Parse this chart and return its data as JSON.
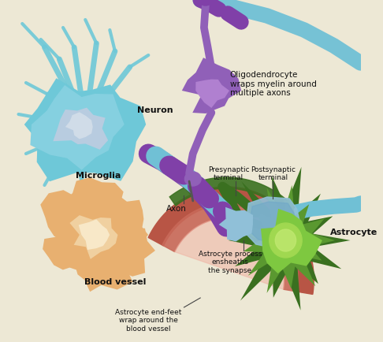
{
  "background_color": "#ede8d5",
  "labels": {
    "neuron": "Neuron",
    "oligodendrocyte": "Oligodendrocyte\nwraps myelin around\nmultiple axons",
    "microglia": "Microglia",
    "blood_vessel": "Blood vessel",
    "astrocyte": "Astrocyte",
    "axon": "Axon",
    "presynaptic": "Presynaptic\nterminal",
    "postsynaptic": "Postsynaptic\nterminal",
    "astrocyte_process": "Astrocyte process\nensheaths\nthe synapse",
    "astrocyte_endfeet": "Astrocyte end-feet\nwrap around the\nblood vessel"
  },
  "colors": {
    "neuron_body": "#6ec8d8",
    "neuron_body2": "#55b5c8",
    "neuron_nucleus": "#b8cce0",
    "neuron_nucleus2": "#d0dce8",
    "axon_purple": "#8040a8",
    "myelin_blue": "#70c0d5",
    "oligodendrocyte_body": "#9060b8",
    "oligodendrocyte_light": "#b080d0",
    "blood_vessel_dark": "#b85545",
    "blood_vessel_mid": "#c86858",
    "blood_vessel_light": "#e09888",
    "blood_vessel_lumen": "#f0b0a0",
    "astrocyte_outer": "#3a7020",
    "astrocyte_mid": "#5a9830",
    "astrocyte_body": "#7ec840",
    "astrocyte_nucleus": "#a0d850",
    "astrocyte_nucleus2": "#c0e870",
    "microglia_outer": "#d89050",
    "microglia_body": "#e8b070",
    "microglia_nucleus": "#f0d0a0",
    "microglia_nucleus2": "#f8e8c8",
    "synapse_blue": "#90c0d8",
    "synapse_blue2": "#70a8c8",
    "background": "#ede8d5"
  }
}
